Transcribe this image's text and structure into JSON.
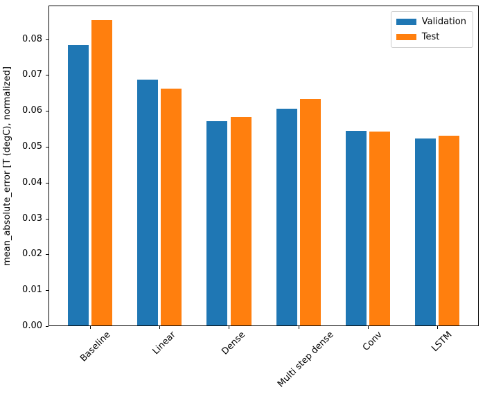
{
  "chart_data": {
    "type": "bar",
    "title": "",
    "xlabel": "",
    "ylabel": "mean_absolute_error [T (degC), normalized]",
    "categories": [
      "Baseline",
      "Linear",
      "Dense",
      "Multi step dense",
      "Conv",
      "LSTM"
    ],
    "series": [
      {
        "name": "Validation",
        "color": "#1f77b4",
        "values": [
          0.0783,
          0.0685,
          0.057,
          0.0605,
          0.0543,
          0.0522
        ]
      },
      {
        "name": "Test",
        "color": "#ff7f0e",
        "values": [
          0.0851,
          0.0661,
          0.0581,
          0.0632,
          0.054,
          0.053
        ]
      }
    ],
    "ylim": [
      0,
      0.0894
    ],
    "yticks": [
      0.0,
      0.01,
      0.02,
      0.03,
      0.04,
      0.05,
      0.06,
      0.07,
      0.08
    ],
    "ytick_labels": [
      "0.00",
      "0.01",
      "0.02",
      "0.03",
      "0.04",
      "0.05",
      "0.06",
      "0.07",
      "0.08"
    ],
    "xtick_rotation_deg": 45,
    "bar_width": 0.3,
    "bar_offset": 0.17,
    "grid": false,
    "legend_position": "upper right",
    "axis_color": "#000000",
    "legend_border_color": "#cccccc",
    "background_color": "#ffffff"
  }
}
